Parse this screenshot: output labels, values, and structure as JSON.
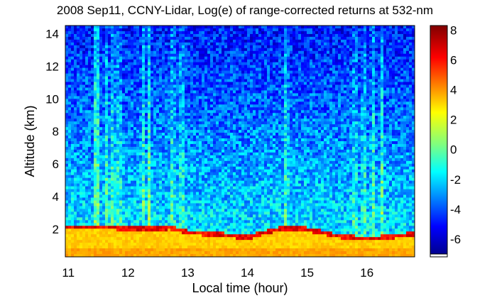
{
  "chart_data": {
    "type": "heatmap",
    "title": "2008 Sep11, CCNY-Lidar, Log(e) of range-corrected returns at 532-nm",
    "xlabel": "Local time (hour)",
    "ylabel": "Altitude (km)",
    "xlim": [
      10.95,
      16.8
    ],
    "ylim": [
      0.3,
      14.5
    ],
    "x_ticks": [
      "11",
      "12",
      "13",
      "14",
      "15",
      "16"
    ],
    "y_ticks": [
      "2",
      "4",
      "6",
      "8",
      "10",
      "12",
      "14"
    ],
    "colorbar": {
      "range": [
        -7,
        8.3
      ],
      "ticks": [
        "8",
        "6",
        "4",
        "2",
        "0",
        "-2",
        "-4",
        "-6"
      ],
      "colormap": "jet"
    },
    "features": {
      "boundary_layer_top_km": [
        {
          "time": 10.95,
          "alt": 2.1
        },
        {
          "time": 11.8,
          "alt": 2.1
        },
        {
          "time": 12.2,
          "alt": 2.0
        },
        {
          "time": 12.7,
          "alt": 2.1
        },
        {
          "time": 13.0,
          "alt": 1.8
        },
        {
          "time": 13.5,
          "alt": 1.7
        },
        {
          "time": 14.0,
          "alt": 1.5
        },
        {
          "time": 14.6,
          "alt": 2.1
        },
        {
          "time": 15.0,
          "alt": 2.0
        },
        {
          "time": 15.5,
          "alt": 1.6
        },
        {
          "time": 16.0,
          "alt": 1.4
        },
        {
          "time": 16.8,
          "alt": 1.7
        }
      ],
      "cloud_columns_hours": [
        11.45,
        11.5,
        11.65,
        11.75,
        11.85,
        12.25,
        12.35,
        12.75,
        12.9,
        14.65,
        15.8,
        15.95,
        16.1,
        16.25
      ]
    }
  }
}
